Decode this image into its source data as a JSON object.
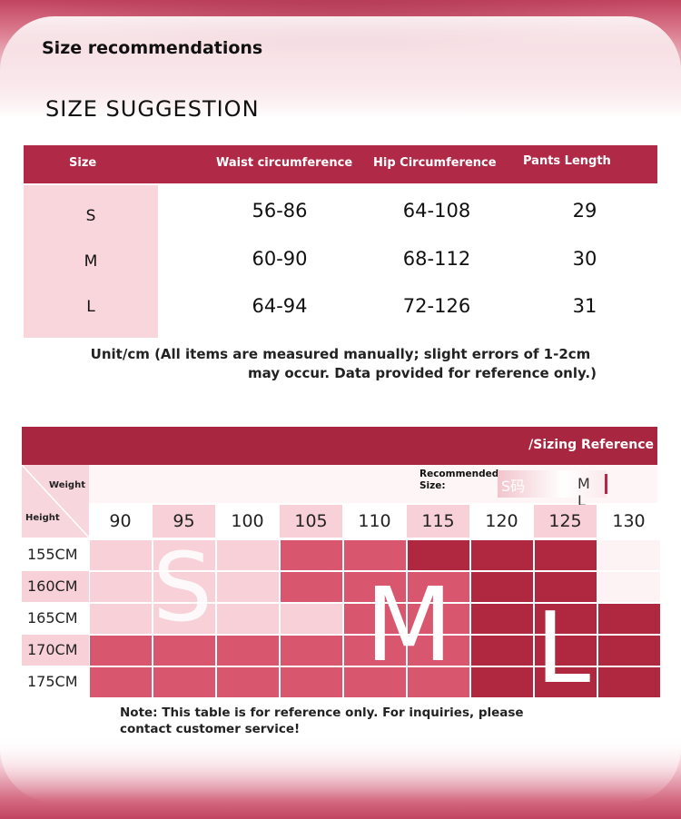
{
  "header": {
    "title_small": "Size recommendations",
    "title_big": "SIZE SUGGESTION"
  },
  "size_table": {
    "headers": [
      "Size",
      "Waist circumference",
      "Hip Circumference",
      "Pants Length"
    ],
    "rows": [
      {
        "size": "S",
        "waist": "56-86",
        "hip": "64-108",
        "length": "29"
      },
      {
        "size": "M",
        "waist": "60-90",
        "hip": "68-112",
        "length": "30"
      },
      {
        "size": "L",
        "waist": "64-94",
        "hip": "72-126",
        "length": "31"
      }
    ],
    "note_line1": "Unit/cm (All items are measured manually; slight errors of 1-2cm",
    "note_line2": "may occur. Data provided for reference only.)"
  },
  "reference": {
    "title": "/Sizing Reference",
    "weight_label": "Weight",
    "height_label": "Height",
    "recommended_label": "Recommended Size:",
    "recommended_sizes": "M L",
    "recommended_faded": "S码",
    "weights": [
      "90",
      "95",
      "100",
      "105",
      "110",
      "115",
      "120",
      "125",
      "130"
    ],
    "heights": [
      "155CM",
      "160CM",
      "165CM",
      "170CM",
      "175CM"
    ],
    "zones": {
      "S": "S",
      "M": "M",
      "L": "L"
    },
    "colors": {
      "light": "#f8d0d7",
      "mid": "#d9566f",
      "dark": "#b0283f",
      "blank": "#fdf2f4"
    },
    "note_line1": "Note: This table is for reference only. For inquiries, please",
    "note_line2": "contact customer service!"
  }
}
